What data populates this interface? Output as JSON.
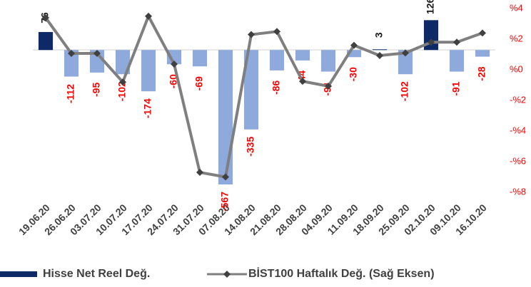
{
  "chart_data": {
    "type": "bar",
    "categories": [
      "19.06.20",
      "26.06.20",
      "03.07.20",
      "10.07.20",
      "17.07.20",
      "24.07.20",
      "31.07.20",
      "07.08.20",
      "14.08.20",
      "21.08.20",
      "28.08.20",
      "04.09.20",
      "11.09.20",
      "18.09.20",
      "25.09.20",
      "02.10.20",
      "09.10.20",
      "16.10.20"
    ],
    "series": [
      {
        "name": "Hisse Net Reel Değ.",
        "type": "bar",
        "color": "#0d2a66",
        "negative_color": "#8eaadc",
        "values": [
          76,
          -112,
          -95,
          -102,
          -174,
          -60,
          -69,
          -567,
          -335,
          -86,
          -44,
          -91,
          -30,
          3,
          -102,
          126,
          -91,
          -28
        ]
      },
      {
        "name": "BİST100 Haftalık Değ. (Sağ Eksen)",
        "type": "line",
        "axis": "y2",
        "color": "#7f7f7f",
        "values": [
          3.4,
          1.07,
          1.07,
          -0.8,
          3.5,
          0.37,
          -6.7,
          -7.0,
          2.3,
          2.5,
          -0.75,
          -1.07,
          1.6,
          0.93,
          1.1,
          1.8,
          1.8,
          2.4
        ]
      }
    ],
    "ylim": [
      -600,
      175
    ],
    "y2lim": [
      -8,
      4
    ],
    "y2ticks": [
      {
        "value": 4,
        "label": "%4"
      },
      {
        "value": 2,
        "label": "%2"
      },
      {
        "value": 0,
        "label": "%0"
      },
      {
        "value": -2,
        "label": "-%2"
      },
      {
        "value": -4,
        "label": "-%4"
      },
      {
        "value": -6,
        "label": "-%6"
      },
      {
        "value": -8,
        "label": "-%8"
      }
    ],
    "negative_label_color": "#ff0000",
    "positive_label_color": "#1a1a1a"
  }
}
